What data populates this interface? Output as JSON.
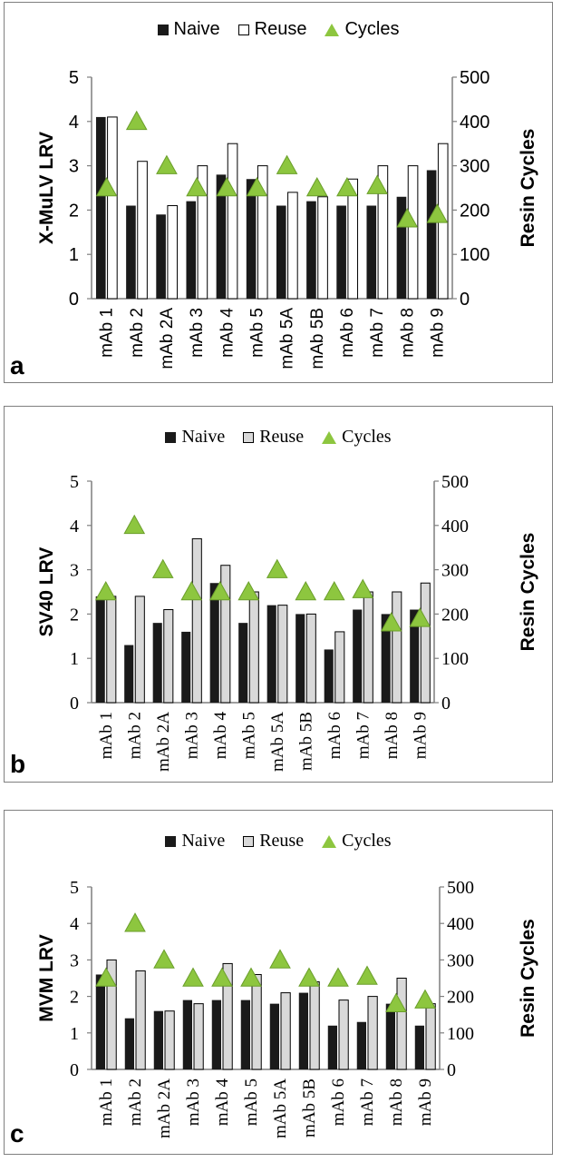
{
  "colors": {
    "naive": "#1a1a1a",
    "reuse_a": "#ffffff",
    "reuse_bc": "#d9d9d9",
    "cycles": "#8dc63f",
    "cycles_stroke": "#6a9e2a",
    "axis": "#7f7f7f"
  },
  "chart_data": [
    {
      "id": "a",
      "type": "bar",
      "panel_label": "a",
      "legend": [
        "Naive",
        "Reuse",
        "Cycles"
      ],
      "ylabel": "X-MuLV LRV",
      "y2label": "Resin Cycles",
      "ylim": [
        0,
        5
      ],
      "y2lim": [
        0,
        500
      ],
      "yticks": [
        "0",
        "1",
        "2",
        "3",
        "4",
        "5"
      ],
      "y2ticks": [
        "0",
        "100",
        "200",
        "300",
        "400",
        "500"
      ],
      "categories": [
        "mAb 1",
        "mAb 2",
        "mAb 2A",
        "mAb 3",
        "mAb 4",
        "mAb 5",
        "mAb 5A",
        "mAb 5B",
        "mAb 6",
        "mAb 7",
        "mAb 8",
        "mAb 9"
      ],
      "series": [
        {
          "name": "Naive",
          "values": [
            4.1,
            2.1,
            1.9,
            2.2,
            2.8,
            2.7,
            2.1,
            2.2,
            2.1,
            2.1,
            2.3,
            2.9
          ]
        },
        {
          "name": "Reuse",
          "values": [
            4.1,
            3.1,
            2.1,
            3.0,
            3.5,
            3.0,
            2.4,
            2.3,
            2.7,
            3.0,
            3.0,
            3.5
          ]
        },
        {
          "name": "Cycles",
          "axis": "secondary",
          "values": [
            250,
            400,
            300,
            250,
            250,
            250,
            300,
            250,
            250,
            255,
            180,
            190
          ]
        }
      ]
    },
    {
      "id": "b",
      "type": "bar",
      "panel_label": "b",
      "legend": [
        "Naive",
        "Reuse",
        "Cycles"
      ],
      "ylabel": "SV40  LRV",
      "y2label": "Resin Cycles",
      "ylim": [
        0,
        5
      ],
      "y2lim": [
        0,
        500
      ],
      "yticks": [
        "0",
        "1",
        "2",
        "3",
        "4",
        "5"
      ],
      "y2ticks": [
        "0",
        "100",
        "200",
        "300",
        "400",
        "500"
      ],
      "categories": [
        "mAb 1",
        "mAb 2",
        "mAb 2A",
        "mAb 3",
        "mAb 4",
        "mAb 5",
        "mAb 5A",
        "mAb 5B",
        "mAb 6",
        "mAb 7",
        "mAb 8",
        "mAb 9"
      ],
      "series": [
        {
          "name": "Naive",
          "values": [
            2.4,
            1.3,
            1.8,
            1.6,
            2.7,
            1.8,
            2.2,
            2.0,
            1.2,
            2.1,
            2.0,
            2.1
          ]
        },
        {
          "name": "Reuse",
          "values": [
            2.4,
            2.4,
            2.1,
            3.7,
            3.1,
            2.5,
            2.2,
            2.0,
            1.6,
            2.5,
            2.5,
            2.7
          ]
        },
        {
          "name": "Cycles",
          "axis": "secondary",
          "values": [
            250,
            400,
            300,
            250,
            250,
            250,
            300,
            250,
            250,
            255,
            180,
            190
          ]
        }
      ]
    },
    {
      "id": "c",
      "type": "bar",
      "panel_label": "c",
      "legend": [
        "Naive",
        "Reuse",
        "Cycles"
      ],
      "ylabel": "MVM LRV",
      "y2label": "Resin Cycles",
      "ylim": [
        0,
        5
      ],
      "y2lim": [
        0,
        500
      ],
      "yticks": [
        "0",
        "1",
        "2",
        "3",
        "4",
        "5"
      ],
      "y2ticks": [
        "0",
        "100",
        "200",
        "300",
        "400",
        "500"
      ],
      "categories": [
        "mAb 1",
        "mAb 2",
        "mAb 2A",
        "mAb 3",
        "mAb 4",
        "mAb 5",
        "mAb 5A",
        "mAb 5B",
        "mAb 6",
        "mAb 7",
        "mAb 8",
        "mAb 9"
      ],
      "series": [
        {
          "name": "Naive",
          "values": [
            2.6,
            1.4,
            1.6,
            1.9,
            1.9,
            1.9,
            1.8,
            2.1,
            1.2,
            1.3,
            1.8,
            1.2
          ]
        },
        {
          "name": "Reuse",
          "values": [
            3.0,
            2.7,
            1.6,
            1.8,
            2.9,
            2.6,
            2.1,
            2.4,
            1.9,
            2.0,
            2.5,
            1.8
          ]
        },
        {
          "name": "Cycles",
          "axis": "secondary",
          "values": [
            250,
            400,
            300,
            250,
            250,
            250,
            300,
            250,
            250,
            255,
            180,
            190
          ]
        }
      ]
    }
  ]
}
